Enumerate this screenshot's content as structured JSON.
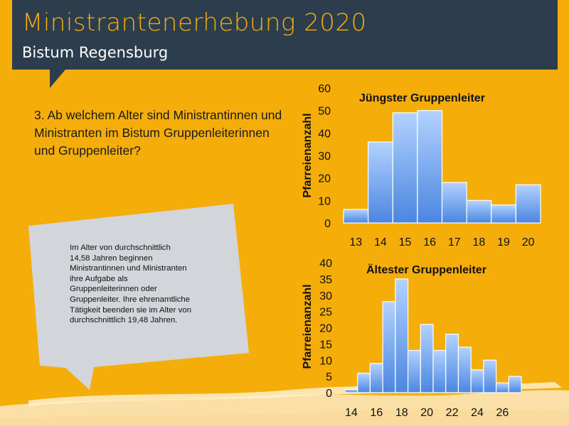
{
  "header": {
    "title": "Ministrantenerhebung 2020",
    "subtitle": "Bistum Regensburg"
  },
  "question": "3. Ab welchem Alter sind Ministrantinnen und Ministranten im Bistum Gruppenleiterinnen und Gruppenleiter?",
  "callout": "Im Alter von durchschnittlich\n14,58 Jahren beginnen\nMinistrantinnen und Ministranten\nihre Aufgabe als\nGruppenleiterinnen  oder\nGruppenleiter.  Ihre ehrenamtliche\nTätigkeit beenden  sie im Alter von\ndurchschnittlich 19,48 Jahren.",
  "colors": {
    "background": "#f5ad0a",
    "header": "#2c3e4d",
    "bar_top": "#b3d2ff",
    "bar_bottom": "#4a86e0",
    "bubble": "#d2d6db"
  },
  "chart_data": [
    {
      "type": "bar",
      "title": "Jüngster Gruppenleiter",
      "ylabel": "Pfarreienanzahl",
      "categories": [
        "13",
        "14",
        "15",
        "16",
        "17",
        "18",
        "19",
        "20"
      ],
      "values": [
        6,
        36,
        49,
        50,
        18,
        10,
        8,
        17
      ],
      "ylim": [
        0,
        60
      ],
      "yticks": [
        "0",
        "10",
        "20",
        "30",
        "40",
        "50",
        "60"
      ],
      "xticks": [
        "13",
        "14",
        "15",
        "16",
        "17",
        "18",
        "19",
        "20"
      ],
      "grid": false
    },
    {
      "type": "bar",
      "title": "Ältester Gruppenleiter",
      "ylabel": "Pfarreienanzahl",
      "categories": [
        "14",
        "15",
        "16",
        "17",
        "18",
        "19",
        "20",
        "21",
        "22",
        "23",
        "24",
        "25",
        "26",
        "27"
      ],
      "values": [
        1,
        6,
        9,
        28,
        35,
        13,
        21,
        13,
        18,
        14,
        7,
        10,
        3,
        5
      ],
      "ylim": [
        0,
        40
      ],
      "yticks": [
        "0",
        "5",
        "10",
        "15",
        "20",
        "25",
        "30",
        "35",
        "40"
      ],
      "xticks": [
        "14",
        "16",
        "18",
        "20",
        "22",
        "24",
        "26"
      ],
      "grid": false
    }
  ]
}
